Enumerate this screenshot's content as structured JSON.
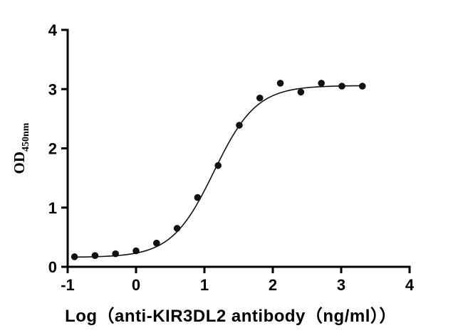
{
  "chart_data": {
    "type": "scatter",
    "title": "",
    "xlabel": "Log（anti-KIR3DL2 antibody（ng/ml））",
    "ylabel": "OD",
    "ylabel_sub": "450nm",
    "xlim": [
      -1,
      4
    ],
    "ylim": [
      0,
      4
    ],
    "xticks": [
      -1,
      0,
      1,
      2,
      3,
      4
    ],
    "yticks": [
      0,
      1,
      2,
      3,
      4
    ],
    "grid": false,
    "legend": null,
    "axis_color": "#000000",
    "marker_color": "#111111",
    "line_color": "#111111",
    "points": {
      "x": [
        -0.9,
        -0.6,
        -0.3,
        0.0,
        0.3,
        0.6,
        0.9,
        1.2,
        1.51,
        1.81,
        2.11,
        2.41,
        2.71,
        3.01,
        3.31
      ],
      "y": [
        0.17,
        0.19,
        0.22,
        0.27,
        0.4,
        0.65,
        1.17,
        1.71,
        2.39,
        2.85,
        3.1,
        2.95,
        3.1,
        3.05,
        3.05
      ]
    },
    "fit": {
      "model": "4PL-sigmoid",
      "bottom": 0.16,
      "top": 3.06,
      "logEC50": 1.14,
      "hill": 1.4,
      "x_start": -0.9,
      "x_end": 3.31
    }
  }
}
